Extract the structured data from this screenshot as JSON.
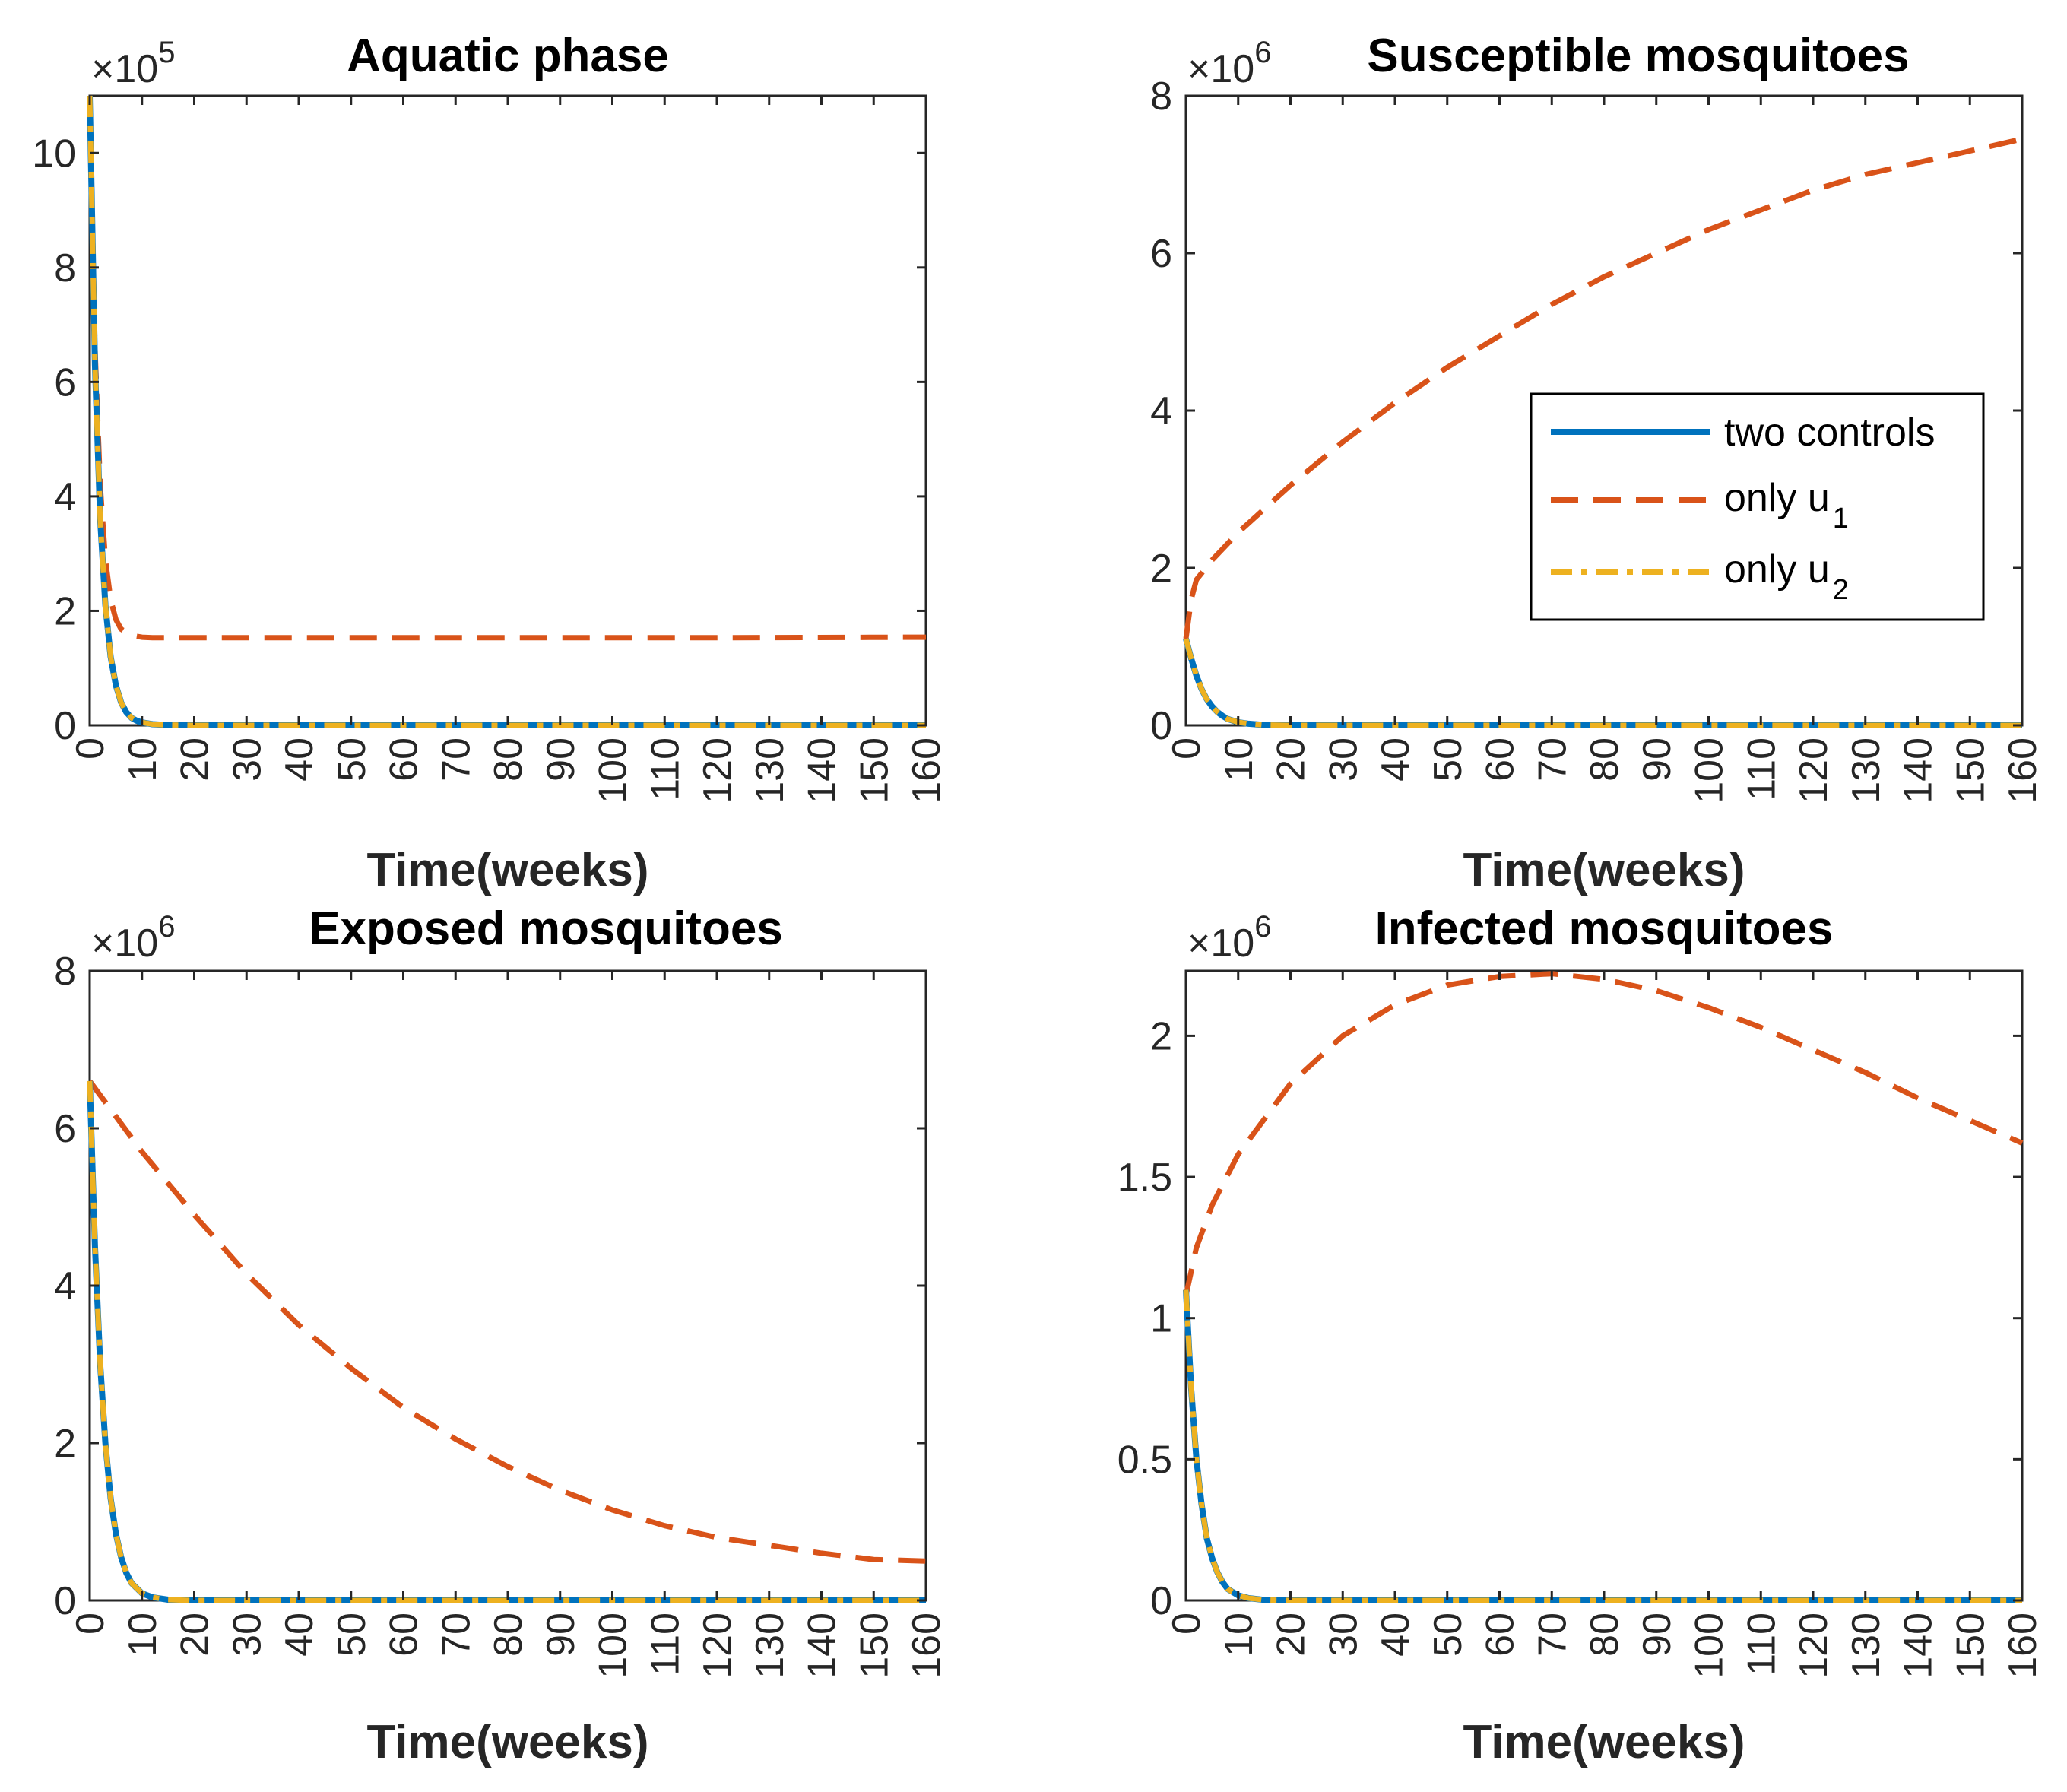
{
  "colors": {
    "two_controls": "#0072BD",
    "only_u1": "#D95319",
    "only_u2": "#EDB120",
    "axis": "#262626"
  },
  "legend": {
    "entries": [
      {
        "key": "two_controls",
        "label": "two controls",
        "sub": ""
      },
      {
        "key": "only_u1",
        "label": "only u",
        "sub": "1"
      },
      {
        "key": "only_u2",
        "label": "only u",
        "sub": "2"
      }
    ]
  },
  "chart_data": [
    {
      "type": "line",
      "title": "Aquatic phase",
      "xlabel": "Time(weeks)",
      "ylabel": "",
      "exponent_base": "×10",
      "exponent": "5",
      "xlim": [
        0,
        160
      ],
      "ylim": [
        0,
        11
      ],
      "xticks": [
        0,
        10,
        20,
        30,
        40,
        50,
        60,
        70,
        80,
        90,
        100,
        110,
        120,
        130,
        140,
        150,
        160
      ],
      "yticks": [
        0,
        2,
        4,
        6,
        8,
        10
      ],
      "ytick_labels": [
        "0",
        "2",
        "4",
        "6",
        "8",
        "10"
      ],
      "series": [
        {
          "name": "two controls",
          "key": "two_controls",
          "x": [
            0,
            1,
            2,
            3,
            4,
            5,
            6,
            7,
            8,
            9,
            10,
            12,
            15,
            20,
            30,
            50,
            80,
            120,
            160
          ],
          "y": [
            11,
            6.3,
            3.6,
            2.1,
            1.2,
            0.7,
            0.4,
            0.23,
            0.13,
            0.08,
            0.05,
            0.02,
            0.005,
            0,
            0,
            0,
            0,
            0,
            0
          ]
        },
        {
          "name": "only u1",
          "key": "only_u1",
          "x": [
            0,
            1,
            2,
            3,
            4,
            5,
            6,
            8,
            10,
            12,
            15,
            20,
            40,
            80,
            120,
            160
          ],
          "y": [
            11,
            6.6,
            4.2,
            2.9,
            2.2,
            1.85,
            1.68,
            1.57,
            1.54,
            1.53,
            1.53,
            1.53,
            1.53,
            1.53,
            1.53,
            1.54
          ]
        },
        {
          "name": "only u2",
          "key": "only_u2",
          "x": [
            0,
            1,
            2,
            3,
            4,
            5,
            6,
            7,
            8,
            9,
            10,
            12,
            15,
            20,
            30,
            50,
            80,
            120,
            160
          ],
          "y": [
            11,
            6.3,
            3.6,
            2.1,
            1.2,
            0.7,
            0.4,
            0.23,
            0.13,
            0.08,
            0.05,
            0.02,
            0.005,
            0,
            0,
            0,
            0,
            0,
            0
          ]
        }
      ]
    },
    {
      "type": "line",
      "title": "Susceptible mosquitoes",
      "xlabel": "Time(weeks)",
      "ylabel": "",
      "exponent_base": "×10",
      "exponent": "6",
      "xlim": [
        0,
        160
      ],
      "ylim": [
        0,
        8
      ],
      "xticks": [
        0,
        10,
        20,
        30,
        40,
        50,
        60,
        70,
        80,
        90,
        100,
        110,
        120,
        130,
        140,
        150,
        160
      ],
      "yticks": [
        0,
        2,
        4,
        6,
        8
      ],
      "ytick_labels": [
        "0",
        "2",
        "4",
        "6",
        "8"
      ],
      "legend_position": "center-right",
      "series": [
        {
          "name": "two controls",
          "key": "two_controls",
          "x": [
            0,
            1,
            2,
            3,
            4,
            5,
            6,
            7,
            8,
            10,
            12,
            15,
            20,
            40,
            80,
            120,
            160
          ],
          "y": [
            1.1,
            0.85,
            0.63,
            0.46,
            0.33,
            0.24,
            0.17,
            0.12,
            0.08,
            0.04,
            0.02,
            0.005,
            0,
            0,
            0,
            0,
            0
          ]
        },
        {
          "name": "only u1",
          "key": "only_u1",
          "x": [
            0,
            1,
            2,
            5,
            10,
            20,
            30,
            40,
            50,
            60,
            70,
            80,
            90,
            100,
            110,
            120,
            130,
            140,
            150,
            160
          ],
          "y": [
            1.1,
            1.6,
            1.85,
            2.1,
            2.45,
            3.05,
            3.6,
            4.1,
            4.55,
            4.95,
            5.35,
            5.7,
            6.0,
            6.3,
            6.55,
            6.8,
            7.0,
            7.15,
            7.3,
            7.45
          ]
        },
        {
          "name": "only u2",
          "key": "only_u2",
          "x": [
            0,
            1,
            2,
            3,
            4,
            5,
            6,
            7,
            8,
            10,
            12,
            15,
            20,
            40,
            80,
            120,
            160
          ],
          "y": [
            1.1,
            0.85,
            0.63,
            0.46,
            0.33,
            0.24,
            0.17,
            0.12,
            0.08,
            0.04,
            0.02,
            0.005,
            0,
            0,
            0,
            0,
            0
          ]
        }
      ]
    },
    {
      "type": "line",
      "title": "Exposed mosquitoes",
      "xlabel": "Time(weeks)",
      "ylabel": "",
      "exponent_base": "×10",
      "exponent": "6",
      "xlim": [
        0,
        160
      ],
      "ylim": [
        0,
        8
      ],
      "xticks": [
        0,
        10,
        20,
        30,
        40,
        50,
        60,
        70,
        80,
        90,
        100,
        110,
        120,
        130,
        140,
        150,
        160
      ],
      "yticks": [
        0,
        2,
        4,
        6,
        8
      ],
      "ytick_labels": [
        "0",
        "2",
        "4",
        "6",
        "8"
      ],
      "series": [
        {
          "name": "two controls",
          "key": "two_controls",
          "x": [
            0,
            1,
            2,
            3,
            4,
            5,
            6,
            7,
            8,
            10,
            12,
            15,
            20,
            40,
            80,
            120,
            160
          ],
          "y": [
            6.6,
            4.5,
            3.0,
            2.0,
            1.3,
            0.85,
            0.55,
            0.35,
            0.22,
            0.09,
            0.04,
            0.01,
            0,
            0,
            0,
            0,
            0
          ]
        },
        {
          "name": "only u1",
          "key": "only_u1",
          "x": [
            0,
            10,
            20,
            30,
            40,
            50,
            60,
            70,
            80,
            90,
            100,
            110,
            120,
            130,
            140,
            150,
            160
          ],
          "y": [
            6.6,
            5.7,
            4.9,
            4.15,
            3.5,
            2.95,
            2.45,
            2.05,
            1.7,
            1.4,
            1.15,
            0.95,
            0.8,
            0.7,
            0.6,
            0.52,
            0.5
          ]
        },
        {
          "name": "only u2",
          "key": "only_u2",
          "x": [
            0,
            1,
            2,
            3,
            4,
            5,
            6,
            7,
            8,
            10,
            12,
            15,
            20,
            40,
            80,
            120,
            160
          ],
          "y": [
            6.6,
            4.5,
            3.0,
            2.0,
            1.3,
            0.85,
            0.55,
            0.35,
            0.22,
            0.09,
            0.04,
            0.01,
            0,
            0,
            0,
            0,
            0
          ]
        }
      ]
    },
    {
      "type": "line",
      "title": "Infected mosquitoes",
      "xlabel": "Time(weeks)",
      "ylabel": "",
      "exponent_base": "×10",
      "exponent": "6",
      "xlim": [
        0,
        160
      ],
      "ylim": [
        0,
        2.23
      ],
      "xticks": [
        0,
        10,
        20,
        30,
        40,
        50,
        60,
        70,
        80,
        90,
        100,
        110,
        120,
        130,
        140,
        150,
        160
      ],
      "yticks": [
        0,
        0.5,
        1,
        1.5,
        2
      ],
      "ytick_labels": [
        "0",
        "0.5",
        "1",
        "1.5",
        "2"
      ],
      "series": [
        {
          "name": "two controls",
          "key": "two_controls",
          "x": [
            0,
            1,
            2,
            3,
            4,
            5,
            6,
            7,
            8,
            10,
            12,
            15,
            20,
            40,
            80,
            120,
            160
          ],
          "y": [
            1.1,
            0.75,
            0.5,
            0.34,
            0.22,
            0.15,
            0.1,
            0.065,
            0.04,
            0.018,
            0.008,
            0.002,
            0,
            0,
            0,
            0,
            0
          ]
        },
        {
          "name": "only u1",
          "key": "only_u1",
          "x": [
            0,
            2,
            5,
            10,
            20,
            30,
            40,
            50,
            60,
            70,
            80,
            90,
            100,
            110,
            120,
            130,
            140,
            150,
            160
          ],
          "y": [
            1.08,
            1.25,
            1.4,
            1.58,
            1.83,
            2.0,
            2.11,
            2.18,
            2.21,
            2.22,
            2.2,
            2.16,
            2.1,
            2.03,
            1.95,
            1.87,
            1.78,
            1.7,
            1.62
          ]
        },
        {
          "name": "only u2",
          "key": "only_u2",
          "x": [
            0,
            1,
            2,
            3,
            4,
            5,
            6,
            7,
            8,
            10,
            12,
            15,
            20,
            40,
            80,
            120,
            160
          ],
          "y": [
            1.1,
            0.75,
            0.5,
            0.34,
            0.22,
            0.15,
            0.1,
            0.065,
            0.04,
            0.018,
            0.008,
            0.002,
            0,
            0,
            0,
            0,
            0
          ]
        }
      ]
    }
  ]
}
